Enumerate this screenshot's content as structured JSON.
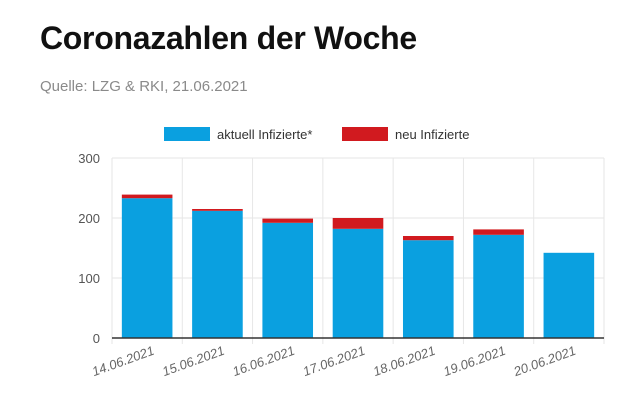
{
  "header": {
    "title": "Coronazahlen der Woche",
    "subtitle": "Quelle: LZG & RKI, 21.06.2021"
  },
  "colors": {
    "aktuell": "#0aa0e0",
    "neu": "#d11a1f",
    "grid": "#e6e6e6",
    "axis": "#333333"
  },
  "chart_data": {
    "type": "bar",
    "stacked": true,
    "categories": [
      "14.06.2021",
      "15.06.2021",
      "16.06.2021",
      "17.06.2021",
      "18.06.2021",
      "19.06.2021",
      "20.06.2021"
    ],
    "series": [
      {
        "name": "aktuell Infizierte*",
        "values": [
          233,
          212,
          192,
          182,
          163,
          172,
          142
        ]
      },
      {
        "name": "neu Infizierte",
        "values": [
          6,
          3,
          7,
          18,
          7,
          9,
          0
        ]
      }
    ],
    "ylim": [
      0,
      300
    ],
    "yticks": [
      0,
      100,
      200,
      300
    ],
    "grid": true,
    "legend": "top-center"
  }
}
